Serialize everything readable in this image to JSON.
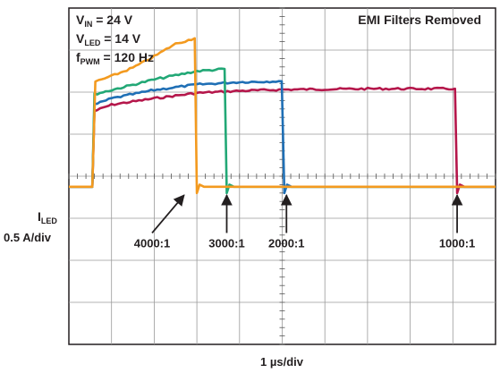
{
  "chart_data": {
    "type": "line",
    "title": "",
    "annotation_title": "EMI Filters Removed",
    "conditions": [
      {
        "symbol": "V",
        "sub": "IN",
        "value": " = 24 V"
      },
      {
        "symbol": "V",
        "sub": "LED",
        "value": " = 14 V"
      },
      {
        "symbol": "f",
        "sub": "PWM",
        "value": " = 120 Hz"
      }
    ],
    "ylabel": {
      "symbol": "I",
      "sub": "LED",
      "scale": "0.5 A/div"
    },
    "xlabel": "1 µs/div",
    "grid": true,
    "divisions": {
      "x": 10,
      "y": 8
    },
    "baseline_div": 4.25,
    "series": [
      {
        "name": "1000:1",
        "color": "#b5174b",
        "on_div": 0.55,
        "off_div": 9.1,
        "points": [
          [
            0.55,
            4.25
          ],
          [
            0.6,
            2.45
          ],
          [
            1.0,
            2.3
          ],
          [
            2.0,
            2.15
          ],
          [
            3.0,
            2.02
          ],
          [
            4.0,
            1.97
          ],
          [
            5.0,
            1.94
          ],
          [
            6.0,
            1.93
          ],
          [
            7.0,
            1.92
          ],
          [
            8.0,
            1.92
          ],
          [
            9.05,
            1.92
          ]
        ]
      },
      {
        "name": "2000:1",
        "color": "#1f6fb5",
        "on_div": 0.55,
        "off_div": 5.05,
        "points": [
          [
            0.55,
            4.25
          ],
          [
            0.6,
            2.3
          ],
          [
            1.0,
            2.15
          ],
          [
            2.0,
            1.95
          ],
          [
            3.0,
            1.82
          ],
          [
            4.0,
            1.76
          ],
          [
            4.99,
            1.74
          ]
        ]
      },
      {
        "name": "3000:1",
        "color": "#22a876",
        "on_div": 0.55,
        "off_div": 3.7,
        "points": [
          [
            0.55,
            4.25
          ],
          [
            0.6,
            2.05
          ],
          [
            1.0,
            1.95
          ],
          [
            2.0,
            1.7
          ],
          [
            3.0,
            1.5
          ],
          [
            3.65,
            1.45
          ]
        ]
      },
      {
        "name": "4000:1",
        "color": "#f39a1f",
        "on_div": 0.55,
        "off_div": 3.0,
        "points": [
          [
            0.55,
            4.25
          ],
          [
            0.62,
            1.75
          ],
          [
            1.0,
            1.62
          ],
          [
            1.5,
            1.42
          ],
          [
            2.0,
            1.15
          ],
          [
            2.5,
            0.85
          ],
          [
            2.95,
            0.72
          ]
        ]
      }
    ],
    "arrows": [
      {
        "label": "4000:1",
        "target_div": [
          2.7,
          4.45
        ],
        "tail_div": [
          1.95,
          5.35
        ]
      },
      {
        "label": "3000:1",
        "target_div": [
          3.7,
          4.45
        ],
        "tail_div": [
          3.7,
          5.35
        ]
      },
      {
        "label": "2000:1",
        "target_div": [
          5.1,
          4.45
        ],
        "tail_div": [
          5.1,
          5.35
        ]
      },
      {
        "label": "1000:1",
        "target_div": [
          9.1,
          4.45
        ],
        "tail_div": [
          9.1,
          5.35
        ]
      }
    ]
  }
}
